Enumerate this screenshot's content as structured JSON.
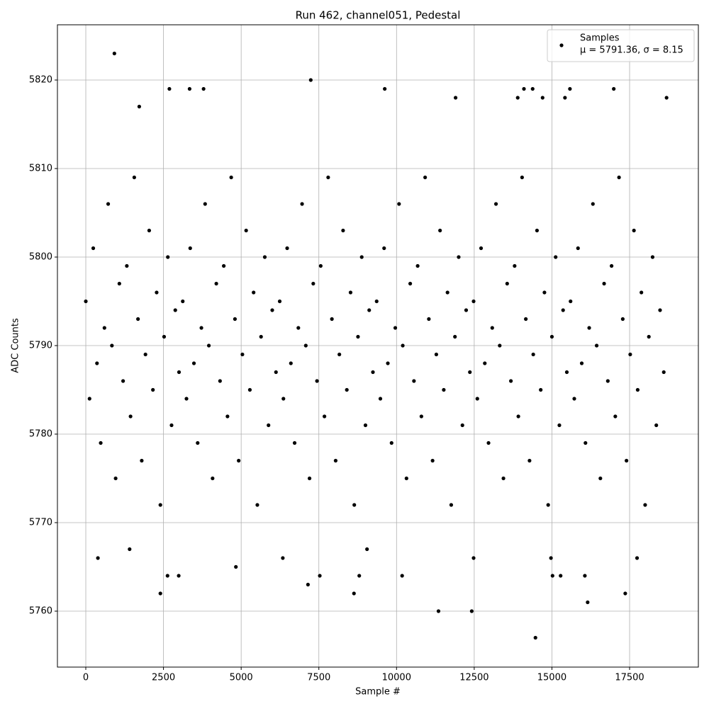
{
  "chart_data": {
    "type": "scatter",
    "title": "Run 462, channel051, Pedestal",
    "xlabel": "Sample #",
    "ylabel": "ADC Counts",
    "series": [
      {
        "name": "Samples",
        "label": "μ = 5791.36, σ = 8.15",
        "color": "#000000",
        "x": [
          0,
          120,
          240,
          360,
          480,
          600,
          720,
          840,
          960,
          1080,
          1200,
          1320,
          1440,
          1560,
          1680,
          1800,
          1920,
          2040,
          2160,
          2280,
          2400,
          2520,
          2640,
          2760,
          2880,
          3000,
          3120,
          3240,
          3360,
          3480,
          3600,
          3720,
          3840,
          3960,
          4080,
          4200,
          4320,
          4440,
          4560,
          4680,
          4800,
          4920,
          5040,
          5160,
          5280,
          5400,
          5520,
          5640,
          5760,
          5880,
          6000,
          6120,
          6240,
          6360,
          6480,
          6600,
          6720,
          6840,
          6960,
          7080,
          7200,
          7320,
          7440,
          7560,
          7680,
          7800,
          7920,
          8040,
          8160,
          8280,
          8400,
          8520,
          8640,
          8760,
          8880,
          9000,
          9120,
          9240,
          9360,
          9480,
          9600,
          9720,
          9840,
          9960,
          10080,
          10200,
          10320,
          10440,
          10560,
          10680,
          10800,
          10920,
          11040,
          11160,
          11280,
          11400,
          11520,
          11640,
          11760,
          11880,
          12000,
          12120,
          12240,
          12360,
          12480,
          12600,
          12720,
          12840,
          12960,
          13080,
          13200,
          13320,
          13440,
          13560,
          13680,
          13800,
          13920,
          14040,
          14160,
          14280,
          14400,
          14520,
          14640,
          14760,
          14880,
          15000,
          15120,
          15240,
          15360,
          15480,
          15600,
          15720,
          15840,
          15960,
          16080,
          16200,
          16320,
          16440,
          16560,
          16680,
          16800,
          16920,
          17040,
          17160,
          17280,
          17400,
          17520,
          17640,
          17760,
          17880,
          18000,
          18120,
          18240,
          18360,
          18480,
          18600,
          920,
          7240,
          14470,
          11350,
          12420,
          2400,
          8630,
          16150,
          17360,
          390,
          4830,
          6340,
          12480,
          14970,
          17740,
          2630,
          2990,
          7530,
          8800,
          10180,
          15020,
          15280,
          16060,
          2690,
          3340,
          3790,
          9620,
          14100,
          14380,
          15580,
          16990,
          1720,
          11900,
          13900,
          14700,
          15420,
          18690,
          7150,
          1410,
          9050
        ],
        "y": [
          5795,
          5784,
          5801,
          5788,
          5779,
          5792,
          5806,
          5790,
          5775,
          5797,
          5786,
          5799,
          5782,
          5809,
          5793,
          5777,
          5789,
          5803,
          5785,
          5796,
          5772,
          5791,
          5800,
          5781,
          5794,
          5787,
          5795,
          5784,
          5801,
          5788,
          5779,
          5792,
          5806,
          5790,
          5775,
          5797,
          5786,
          5799,
          5782,
          5809,
          5793,
          5777,
          5789,
          5803,
          5785,
          5796,
          5772,
          5791,
          5800,
          5781,
          5794,
          5787,
          5795,
          5784,
          5801,
          5788,
          5779,
          5792,
          5806,
          5790,
          5775,
          5797,
          5786,
          5799,
          5782,
          5809,
          5793,
          5777,
          5789,
          5803,
          5785,
          5796,
          5772,
          5791,
          5800,
          5781,
          5794,
          5787,
          5795,
          5784,
          5801,
          5788,
          5779,
          5792,
          5806,
          5790,
          5775,
          5797,
          5786,
          5799,
          5782,
          5809,
          5793,
          5777,
          5789,
          5803,
          5785,
          5796,
          5772,
          5791,
          5800,
          5781,
          5794,
          5787,
          5795,
          5784,
          5801,
          5788,
          5779,
          5792,
          5806,
          5790,
          5775,
          5797,
          5786,
          5799,
          5782,
          5809,
          5793,
          5777,
          5789,
          5803,
          5785,
          5796,
          5772,
          5791,
          5800,
          5781,
          5794,
          5787,
          5795,
          5784,
          5801,
          5788,
          5779,
          5792,
          5806,
          5790,
          5775,
          5797,
          5786,
          5799,
          5782,
          5809,
          5793,
          5777,
          5789,
          5803,
          5785,
          5796,
          5772,
          5791,
          5800,
          5781,
          5794,
          5787,
          5823,
          5820,
          5757,
          5760,
          5760,
          5762,
          5762,
          5761,
          5762,
          5766,
          5765,
          5766,
          5766,
          5766,
          5766,
          5764,
          5764,
          5764,
          5764,
          5764,
          5764,
          5764,
          5764,
          5819,
          5819,
          5819,
          5819,
          5819,
          5819,
          5819,
          5819,
          5817,
          5818,
          5818,
          5818,
          5818,
          5818,
          5763,
          5767,
          5767
        ]
      }
    ],
    "xlim": [
      -913,
      19713
    ],
    "ylim": [
      5753.68,
      5826.24
    ],
    "xticks": [
      0,
      2500,
      5000,
      7500,
      10000,
      12500,
      15000,
      17500
    ],
    "yticks": [
      5760,
      5770,
      5780,
      5790,
      5800,
      5810,
      5820
    ],
    "grid": true,
    "legend": "upper right"
  }
}
